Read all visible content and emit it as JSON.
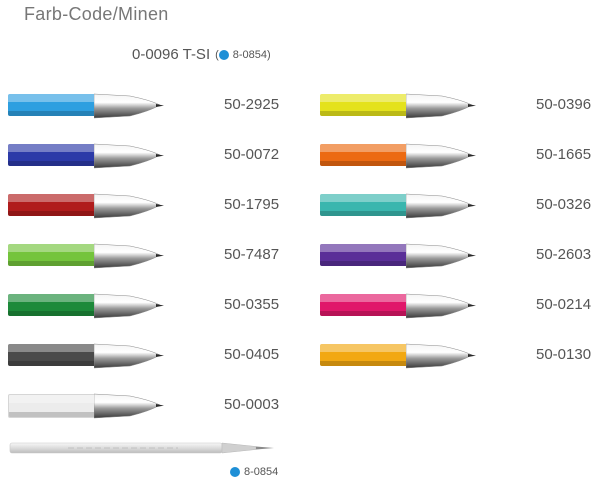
{
  "title": "Farb-Code/Minen",
  "header": {
    "model": "0-0096 T-SI",
    "refill_prefix": "(",
    "refill_code": "8-0854)"
  },
  "left_column": [
    {
      "color_hex": "#2e9fe0",
      "code": "50-2925"
    },
    {
      "color_hex": "#2c3aa8",
      "code": "50-0072"
    },
    {
      "color_hex": "#b01c1c",
      "code": "50-1795"
    },
    {
      "color_hex": "#74c43c",
      "code": "50-7487"
    },
    {
      "color_hex": "#1d8a3a",
      "code": "50-0355"
    },
    {
      "color_hex": "#4a4a4a",
      "code": "50-0405"
    },
    {
      "color_hex": "#ececec",
      "code": "50-0003"
    }
  ],
  "right_column": [
    {
      "color_hex": "#e4e21c",
      "code": "50-0396"
    },
    {
      "color_hex": "#ec6a12",
      "code": "50-1665"
    },
    {
      "color_hex": "#3ab6ae",
      "code": "50-0326"
    },
    {
      "color_hex": "#5a2f98",
      "code": "50-2603"
    },
    {
      "color_hex": "#e0176a",
      "code": "50-0214"
    },
    {
      "color_hex": "#f2a812",
      "code": "50-0130"
    }
  ],
  "refill": {
    "code": "8-0854"
  }
}
